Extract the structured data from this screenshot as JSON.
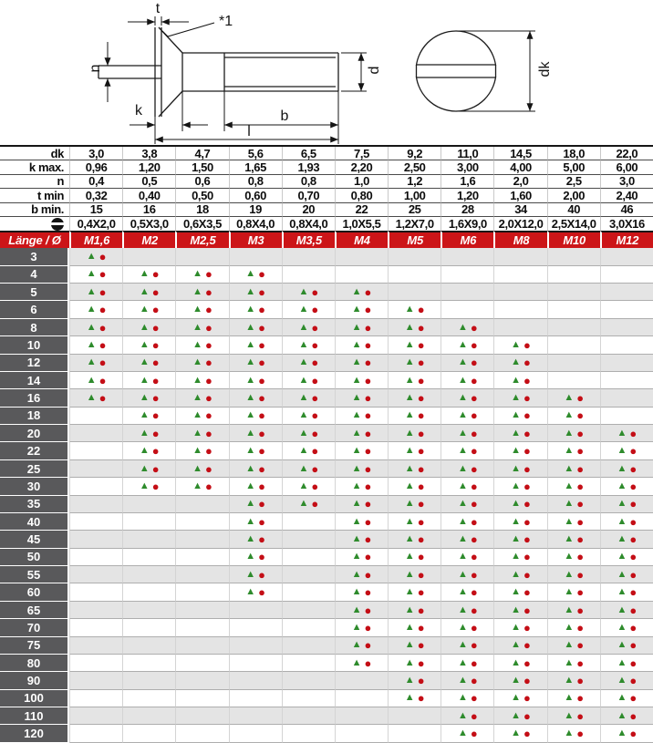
{
  "colors": {
    "header_red": "#cc1518",
    "row_label_gray": "#59595b",
    "zebra_gray": "#e4e4e4",
    "triangle_green": "#2e8b2c",
    "circle_red": "#c40e16"
  },
  "drawing": {
    "side_view": {
      "labels": {
        "t": "t",
        "footnote": "*1",
        "n": "n",
        "k": "k",
        "b": "b",
        "l": "l",
        "d": "d"
      }
    },
    "top_view": {
      "labels": {
        "dk": "dk"
      }
    }
  },
  "spec_table": {
    "rows": [
      {
        "label": "dk",
        "values": [
          "3,0",
          "3,8",
          "4,7",
          "5,6",
          "6,5",
          "7,5",
          "9,2",
          "11,0",
          "14,5",
          "18,0",
          "22,0"
        ]
      },
      {
        "label": "k max.",
        "values": [
          "0,96",
          "1,20",
          "1,50",
          "1,65",
          "1,93",
          "2,20",
          "2,50",
          "3,00",
          "4,00",
          "5,00",
          "6,00"
        ]
      },
      {
        "label": "n",
        "values": [
          "0,4",
          "0,5",
          "0,6",
          "0,8",
          "0,8",
          "1,0",
          "1,2",
          "1,6",
          "2,0",
          "2,5",
          "3,0"
        ]
      },
      {
        "label": "t min",
        "values": [
          "0,32",
          "0,40",
          "0,50",
          "0,60",
          "0,70",
          "0,80",
          "1,00",
          "1,20",
          "1,60",
          "2,00",
          "2,40"
        ]
      },
      {
        "label": "b min.",
        "values": [
          "15",
          "16",
          "18",
          "19",
          "20",
          "22",
          "25",
          "28",
          "34",
          "40",
          "46"
        ]
      },
      {
        "label": "⊖",
        "icon": "slotted-screw-icon",
        "values": [
          "0,4X2,0",
          "0,5X3,0",
          "0,6X3,5",
          "0,8X4,0",
          "0,8X4,0",
          "1,0X5,5",
          "1,2X7,0",
          "1,6X9,0",
          "2,0X12,0",
          "2,5X14,0",
          "3,0X16"
        ]
      }
    ]
  },
  "main_table": {
    "header": {
      "corner": "Länge / Ø",
      "columns": [
        "M1,6",
        "M2",
        "M2,5",
        "M3",
        "M3,5",
        "M4",
        "M5",
        "M6",
        "M8",
        "M10",
        "M12"
      ]
    },
    "markers": {
      "triangle": "▲",
      "circle": "●"
    },
    "rows": [
      {
        "length": "3",
        "available": [
          1,
          0,
          0,
          0,
          0,
          0,
          0,
          0,
          0,
          0,
          0
        ]
      },
      {
        "length": "4",
        "available": [
          1,
          1,
          1,
          1,
          0,
          0,
          0,
          0,
          0,
          0,
          0
        ]
      },
      {
        "length": "5",
        "available": [
          1,
          1,
          1,
          1,
          1,
          1,
          0,
          0,
          0,
          0,
          0
        ]
      },
      {
        "length": "6",
        "available": [
          1,
          1,
          1,
          1,
          1,
          1,
          1,
          0,
          0,
          0,
          0
        ]
      },
      {
        "length": "8",
        "available": [
          1,
          1,
          1,
          1,
          1,
          1,
          1,
          1,
          0,
          0,
          0
        ]
      },
      {
        "length": "10",
        "available": [
          1,
          1,
          1,
          1,
          1,
          1,
          1,
          1,
          1,
          0,
          0
        ]
      },
      {
        "length": "12",
        "available": [
          1,
          1,
          1,
          1,
          1,
          1,
          1,
          1,
          1,
          0,
          0
        ]
      },
      {
        "length": "14",
        "available": [
          1,
          1,
          1,
          1,
          1,
          1,
          1,
          1,
          1,
          0,
          0
        ]
      },
      {
        "length": "16",
        "available": [
          1,
          1,
          1,
          1,
          1,
          1,
          1,
          1,
          1,
          1,
          0
        ]
      },
      {
        "length": "18",
        "available": [
          0,
          1,
          1,
          1,
          1,
          1,
          1,
          1,
          1,
          1,
          0
        ]
      },
      {
        "length": "20",
        "available": [
          0,
          1,
          1,
          1,
          1,
          1,
          1,
          1,
          1,
          1,
          1
        ]
      },
      {
        "length": "22",
        "available": [
          0,
          1,
          1,
          1,
          1,
          1,
          1,
          1,
          1,
          1,
          1
        ]
      },
      {
        "length": "25",
        "available": [
          0,
          1,
          1,
          1,
          1,
          1,
          1,
          1,
          1,
          1,
          1
        ]
      },
      {
        "length": "30",
        "available": [
          0,
          1,
          1,
          1,
          1,
          1,
          1,
          1,
          1,
          1,
          1
        ]
      },
      {
        "length": "35",
        "available": [
          0,
          0,
          0,
          1,
          1,
          1,
          1,
          1,
          1,
          1,
          1
        ]
      },
      {
        "length": "40",
        "available": [
          0,
          0,
          0,
          1,
          0,
          1,
          1,
          1,
          1,
          1,
          1
        ]
      },
      {
        "length": "45",
        "available": [
          0,
          0,
          0,
          1,
          0,
          1,
          1,
          1,
          1,
          1,
          1
        ]
      },
      {
        "length": "50",
        "available": [
          0,
          0,
          0,
          1,
          0,
          1,
          1,
          1,
          1,
          1,
          1
        ]
      },
      {
        "length": "55",
        "available": [
          0,
          0,
          0,
          1,
          0,
          1,
          1,
          1,
          1,
          1,
          1
        ]
      },
      {
        "length": "60",
        "available": [
          0,
          0,
          0,
          1,
          0,
          1,
          1,
          1,
          1,
          1,
          1
        ]
      },
      {
        "length": "65",
        "available": [
          0,
          0,
          0,
          0,
          0,
          1,
          1,
          1,
          1,
          1,
          1
        ]
      },
      {
        "length": "70",
        "available": [
          0,
          0,
          0,
          0,
          0,
          1,
          1,
          1,
          1,
          1,
          1
        ]
      },
      {
        "length": "75",
        "available": [
          0,
          0,
          0,
          0,
          0,
          1,
          1,
          1,
          1,
          1,
          1
        ]
      },
      {
        "length": "80",
        "available": [
          0,
          0,
          0,
          0,
          0,
          1,
          1,
          1,
          1,
          1,
          1
        ]
      },
      {
        "length": "90",
        "available": [
          0,
          0,
          0,
          0,
          0,
          0,
          1,
          1,
          1,
          1,
          1
        ]
      },
      {
        "length": "100",
        "available": [
          0,
          0,
          0,
          0,
          0,
          0,
          1,
          1,
          1,
          1,
          1
        ]
      },
      {
        "length": "110",
        "available": [
          0,
          0,
          0,
          0,
          0,
          0,
          0,
          1,
          1,
          1,
          1
        ]
      },
      {
        "length": "120",
        "available": [
          0,
          0,
          0,
          0,
          0,
          0,
          0,
          1,
          1,
          1,
          1
        ]
      }
    ]
  }
}
